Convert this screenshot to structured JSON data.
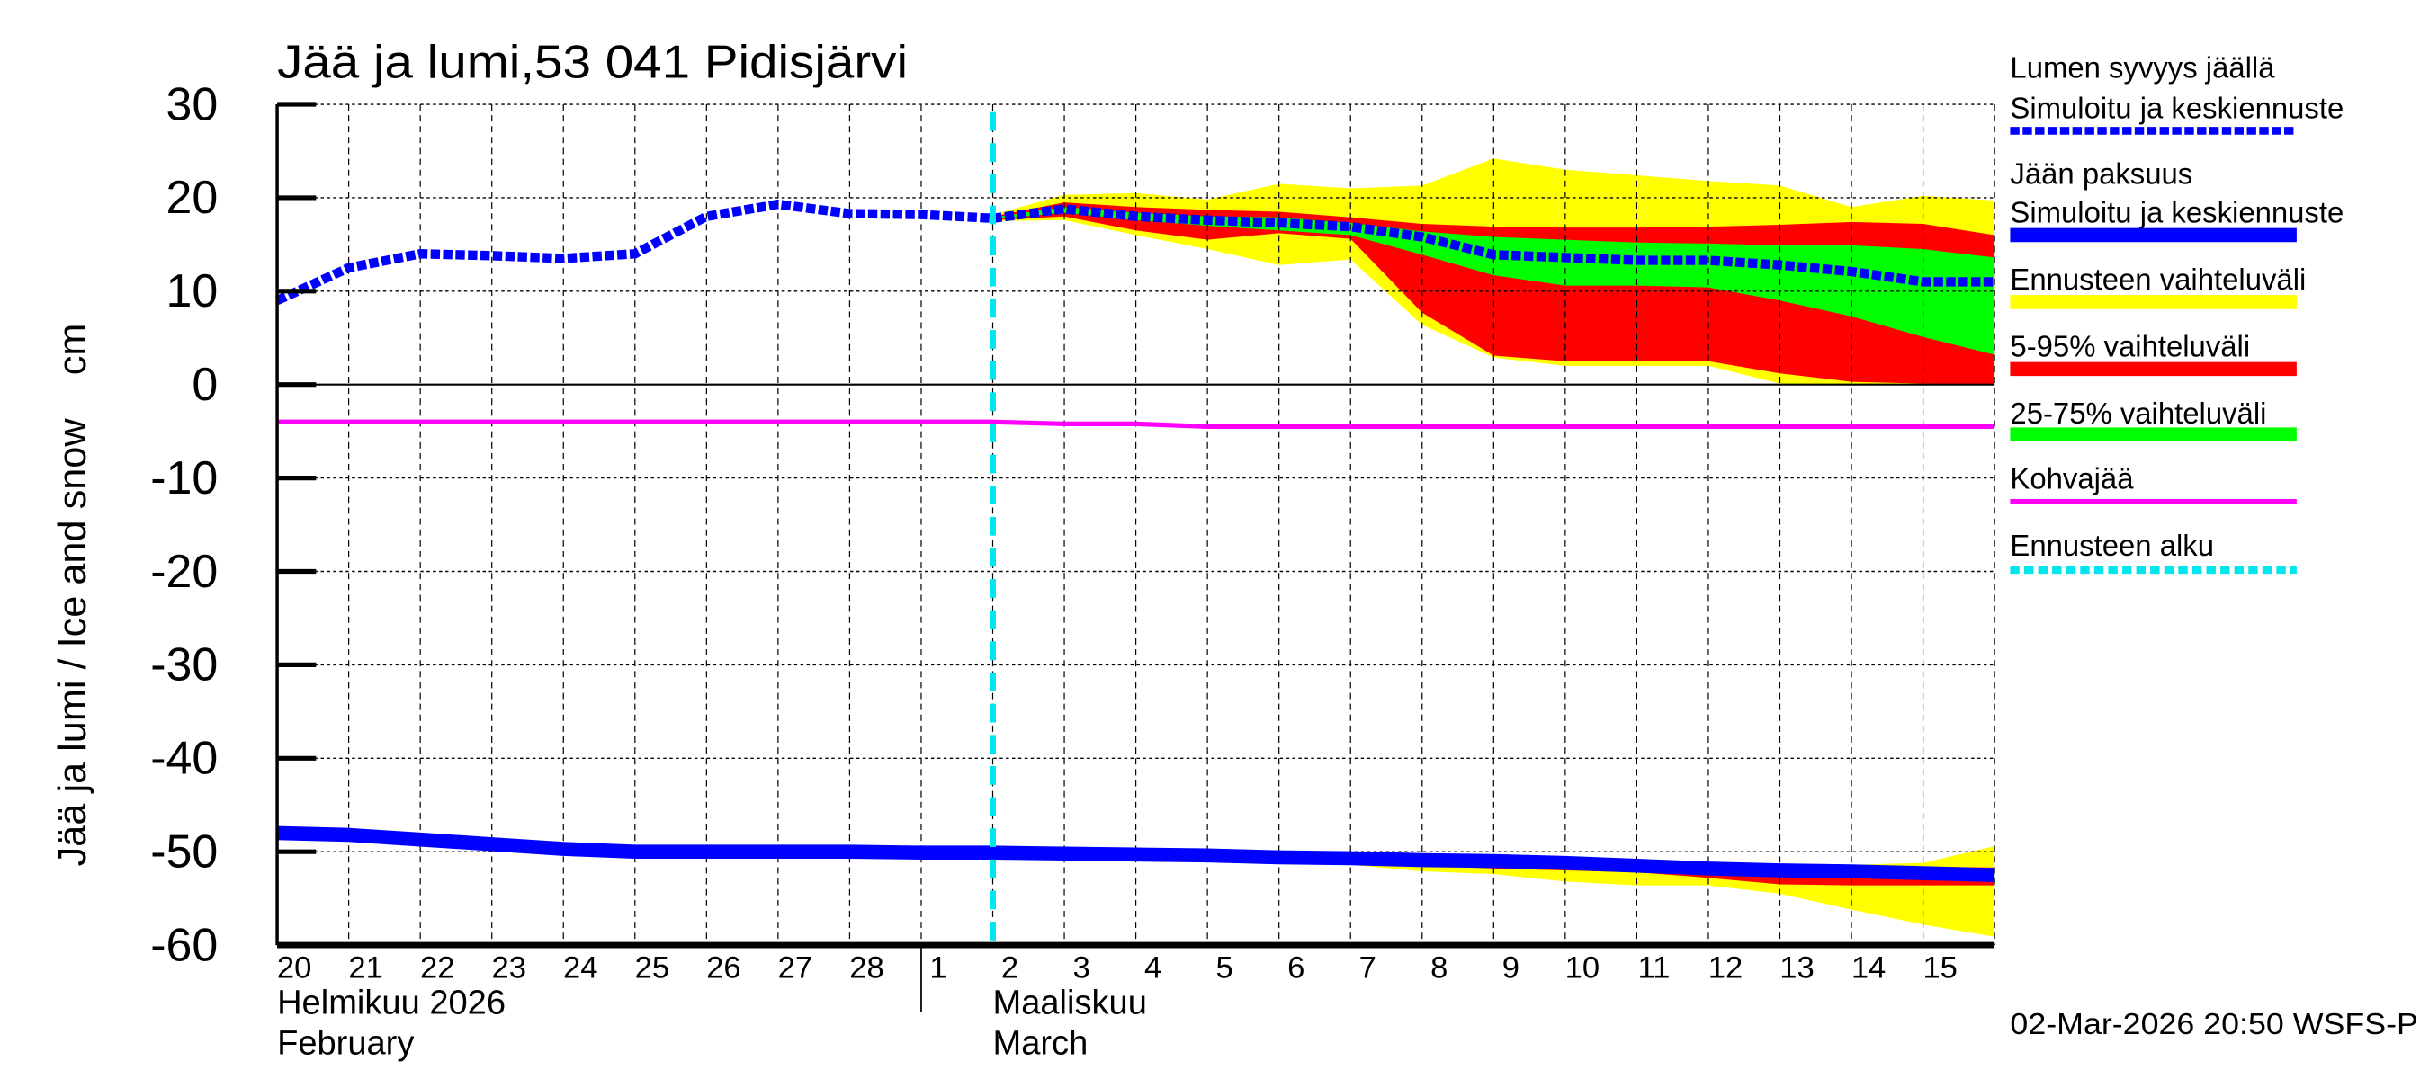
{
  "chart_data": {
    "type": "area",
    "title": "Jää ja lumi,53 041 Pidisjärvi",
    "ylabel": "Jää ja lumi / Ice and snow    cm",
    "ylim": [
      -60,
      30
    ],
    "yticks": [
      30,
      20,
      10,
      0,
      -10,
      -20,
      -30,
      -40,
      -50,
      -60
    ],
    "grid": true,
    "legend_position": "right",
    "x_start": "2026-02-20",
    "x_end": "2026-03-16",
    "x_tick_labels": [
      "20",
      "21",
      "22",
      "23",
      "24",
      "25",
      "26",
      "27",
      "28",
      "1",
      "2",
      "3",
      "4",
      "5",
      "6",
      "7",
      "8",
      "9",
      "10",
      "11",
      "12",
      "13",
      "14",
      "15"
    ],
    "month_labels": [
      {
        "fi": "Helmikuu  2026",
        "en": "February",
        "date": "2026-02-20"
      },
      {
        "fi": "Maaliskuu",
        "en": "March",
        "date": "2026-03-02"
      }
    ],
    "month_separator_date": "2026-03-01",
    "forecast_start": "2026-03-02",
    "timestamp": "02-Mar-2026 20:50 WSFS-P",
    "colors": {
      "snow": "#0000ff",
      "ice": "#0000ff",
      "range": "#ffff00",
      "p5_95": "#ff0000",
      "p25_75": "#00ff00",
      "kohva": "#ff00ff",
      "forecast_start": "#00e5ee"
    },
    "legend": [
      {
        "title": "Lumen syvyys jäällä",
        "label": "Simuloitu ja keskiennuste",
        "style": "dashed-blue"
      },
      {
        "title": "Jään paksuus",
        "label": "Simuloitu ja keskiennuste",
        "style": "solid-blue"
      },
      {
        "title": "",
        "label": "Ennusteen vaihteluväli",
        "style": "yellow"
      },
      {
        "title": "",
        "label": "5-95% vaihteluväli",
        "style": "red"
      },
      {
        "title": "",
        "label": "25-75% vaihteluväli",
        "style": "green"
      },
      {
        "title": "",
        "label": "Kohvajää",
        "style": "magenta"
      },
      {
        "title": "",
        "label": "Ennusteen alku",
        "style": "cyan-dashed"
      }
    ],
    "snow": {
      "dates": [
        "02-20",
        "02-21",
        "02-22",
        "02-23",
        "02-24",
        "02-25",
        "02-26",
        "02-27",
        "02-28",
        "03-01",
        "03-02",
        "03-03",
        "03-04",
        "03-05",
        "03-06",
        "03-07",
        "03-08",
        "03-09",
        "03-10",
        "03-11",
        "03-12",
        "03-13",
        "03-14",
        "03-15",
        "03-16"
      ],
      "median": [
        9,
        12.5,
        14,
        13.8,
        13.5,
        14,
        18,
        19.3,
        18.3,
        18.2,
        17.8,
        18.8,
        18,
        17.6,
        17.3,
        16.9,
        15.8,
        13.9,
        13.6,
        13.3,
        13.3,
        12.8,
        12.1,
        11,
        11
      ],
      "band_dates": [
        "03-02",
        "03-03",
        "03-04",
        "03-05",
        "03-06",
        "03-07",
        "03-08",
        "03-09",
        "03-10",
        "03-11",
        "03-12",
        "03-13",
        "03-14",
        "03-15",
        "03-16"
      ],
      "range_hi": [
        18.2,
        20.3,
        20.5,
        19.8,
        21.5,
        21,
        21.3,
        24.2,
        23,
        22.4,
        21.8,
        21.3,
        19,
        20.2,
        19.7
      ],
      "p95": [
        18,
        19.5,
        19,
        18.7,
        18.5,
        17.9,
        17.2,
        16.9,
        16.8,
        16.8,
        16.9,
        17.1,
        17.4,
        17.2,
        16
      ],
      "p75": [
        17.9,
        19,
        18.4,
        18,
        17.9,
        17.3,
        16.4,
        15.8,
        15.5,
        15.2,
        15.1,
        14.9,
        14.9,
        14.5,
        13.6
      ],
      "p25": [
        17.7,
        18.4,
        17.6,
        17,
        16.5,
        16,
        13.9,
        11.7,
        10.6,
        10.6,
        10.4,
        9,
        7.3,
        5.1,
        3.2
      ],
      "p5": [
        17.6,
        18,
        16.5,
        15.5,
        16.2,
        15.6,
        7.7,
        3.1,
        2.5,
        2.5,
        2.5,
        1.2,
        0.3,
        0.1,
        0
      ],
      "range_lo": [
        17.5,
        17.6,
        16,
        14.5,
        12.8,
        13.4,
        6.4,
        2.9,
        2,
        2,
        2,
        0.1,
        0,
        0,
        0
      ]
    },
    "ice": {
      "dates": [
        "02-20",
        "02-21",
        "02-22",
        "02-23",
        "02-24",
        "02-25",
        "02-26",
        "02-27",
        "02-28",
        "03-01",
        "03-02",
        "03-03",
        "03-04",
        "03-05",
        "03-06",
        "03-07",
        "03-08",
        "03-09",
        "03-10",
        "03-11",
        "03-12",
        "03-13",
        "03-14",
        "03-15",
        "03-16"
      ],
      "median": [
        -48,
        -48.2,
        -48.7,
        -49.2,
        -49.7,
        -50,
        -50,
        -50,
        -50,
        -50.1,
        -50.1,
        -50.2,
        -50.3,
        -50.4,
        -50.6,
        -50.7,
        -50.9,
        -51,
        -51.2,
        -51.5,
        -51.8,
        -52,
        -52.1,
        -52.3,
        -52.5
      ],
      "band_dates": [
        "03-06",
        "03-07",
        "03-08",
        "03-09",
        "03-10",
        "03-11",
        "03-12",
        "03-13",
        "03-14",
        "03-15",
        "03-16"
      ],
      "range_hi": [
        -50.4,
        -50.5,
        -50.6,
        -50.7,
        -50.8,
        -51,
        -51.2,
        -51.3,
        -51.4,
        -51.2,
        -49.4
      ],
      "p95": [
        -50.5,
        -50.6,
        -50.7,
        -50.8,
        -50.9,
        -51.1,
        -51.3,
        -51.4,
        -51.5,
        -51.6,
        -51.7
      ],
      "p75": [
        -50.6,
        -50.7,
        -50.8,
        -50.9,
        -51.0,
        -51.3,
        -51.6,
        -51.8,
        -51.9,
        -52.0,
        -52.1
      ],
      "p25": [
        -50.7,
        -50.9,
        -51.1,
        -51.3,
        -51.5,
        -51.8,
        -52.1,
        -52.3,
        -52.4,
        -52.6,
        -52.9
      ],
      "p5": [
        -50.8,
        -51.2,
        -51.5,
        -51.8,
        -52,
        -52.2,
        -52.8,
        -53.5,
        -53.6,
        -53.6,
        -53.6
      ],
      "range_lo": [
        -50.8,
        -51.4,
        -52.1,
        -52.4,
        -53.2,
        -53.6,
        -53.6,
        -54.5,
        -56.2,
        -57.8,
        -59.1
      ]
    },
    "kohva": {
      "dates": [
        "02-20",
        "03-02",
        "03-03",
        "03-04",
        "03-05",
        "03-16"
      ],
      "values": [
        -4,
        -4,
        -4.2,
        -4.2,
        -4.5,
        -4.5
      ]
    }
  }
}
